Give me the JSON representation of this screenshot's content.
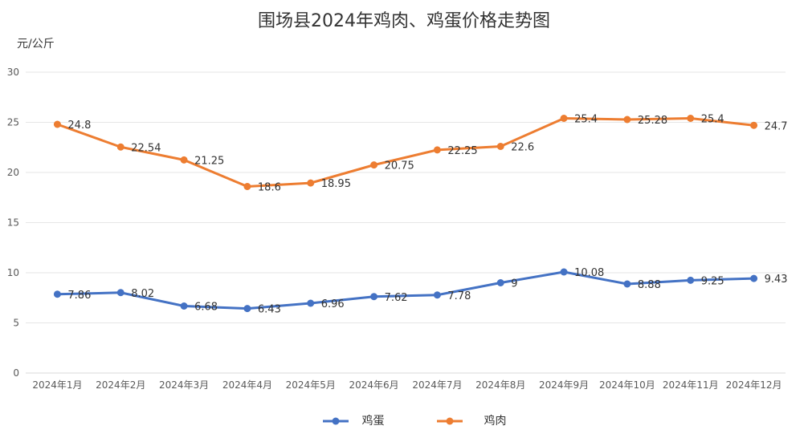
{
  "chart_data": {
    "type": "line",
    "title": "围场县2024年鸡肉、鸡蛋价格走势图",
    "ylabel": "元/公斤",
    "xlabel": "",
    "categories": [
      "2024年1月",
      "2024年2月",
      "2024年3月",
      "2024年4月",
      "2024年5月",
      "2024年6月",
      "2024年7月",
      "2024年8月",
      "2024年9月",
      "2024年10月",
      "2024年11月",
      "2024年12月"
    ],
    "y_ticks": [
      "0",
      "5",
      "10",
      "15",
      "20",
      "25",
      "30"
    ],
    "ylim": [
      0,
      30
    ],
    "grid": true,
    "legend_position": "bottom",
    "series": [
      {
        "name": "鸡蛋",
        "color": "#4472C4",
        "values": [
          7.86,
          8.02,
          6.68,
          6.43,
          6.96,
          7.62,
          7.78,
          9,
          10.08,
          8.88,
          9.25,
          9.43
        ],
        "labels": [
          "7.86",
          "8.02",
          "6.68",
          "6.43",
          "6.96",
          "7.62",
          "7.78",
          "9",
          "10.08",
          "8.88",
          "9.25",
          "9.43"
        ]
      },
      {
        "name": "鸡肉",
        "color": "#ED7D31",
        "values": [
          24.8,
          22.54,
          21.25,
          18.6,
          18.95,
          20.75,
          22.25,
          22.6,
          25.4,
          25.28,
          25.4,
          24.7
        ],
        "labels": [
          "24.8",
          "22.54",
          "21.25",
          "18.6",
          "18.95",
          "20.75",
          "22.25",
          "22.6",
          "25.4",
          "25.28",
          "25.4",
          "24.7"
        ]
      }
    ]
  }
}
